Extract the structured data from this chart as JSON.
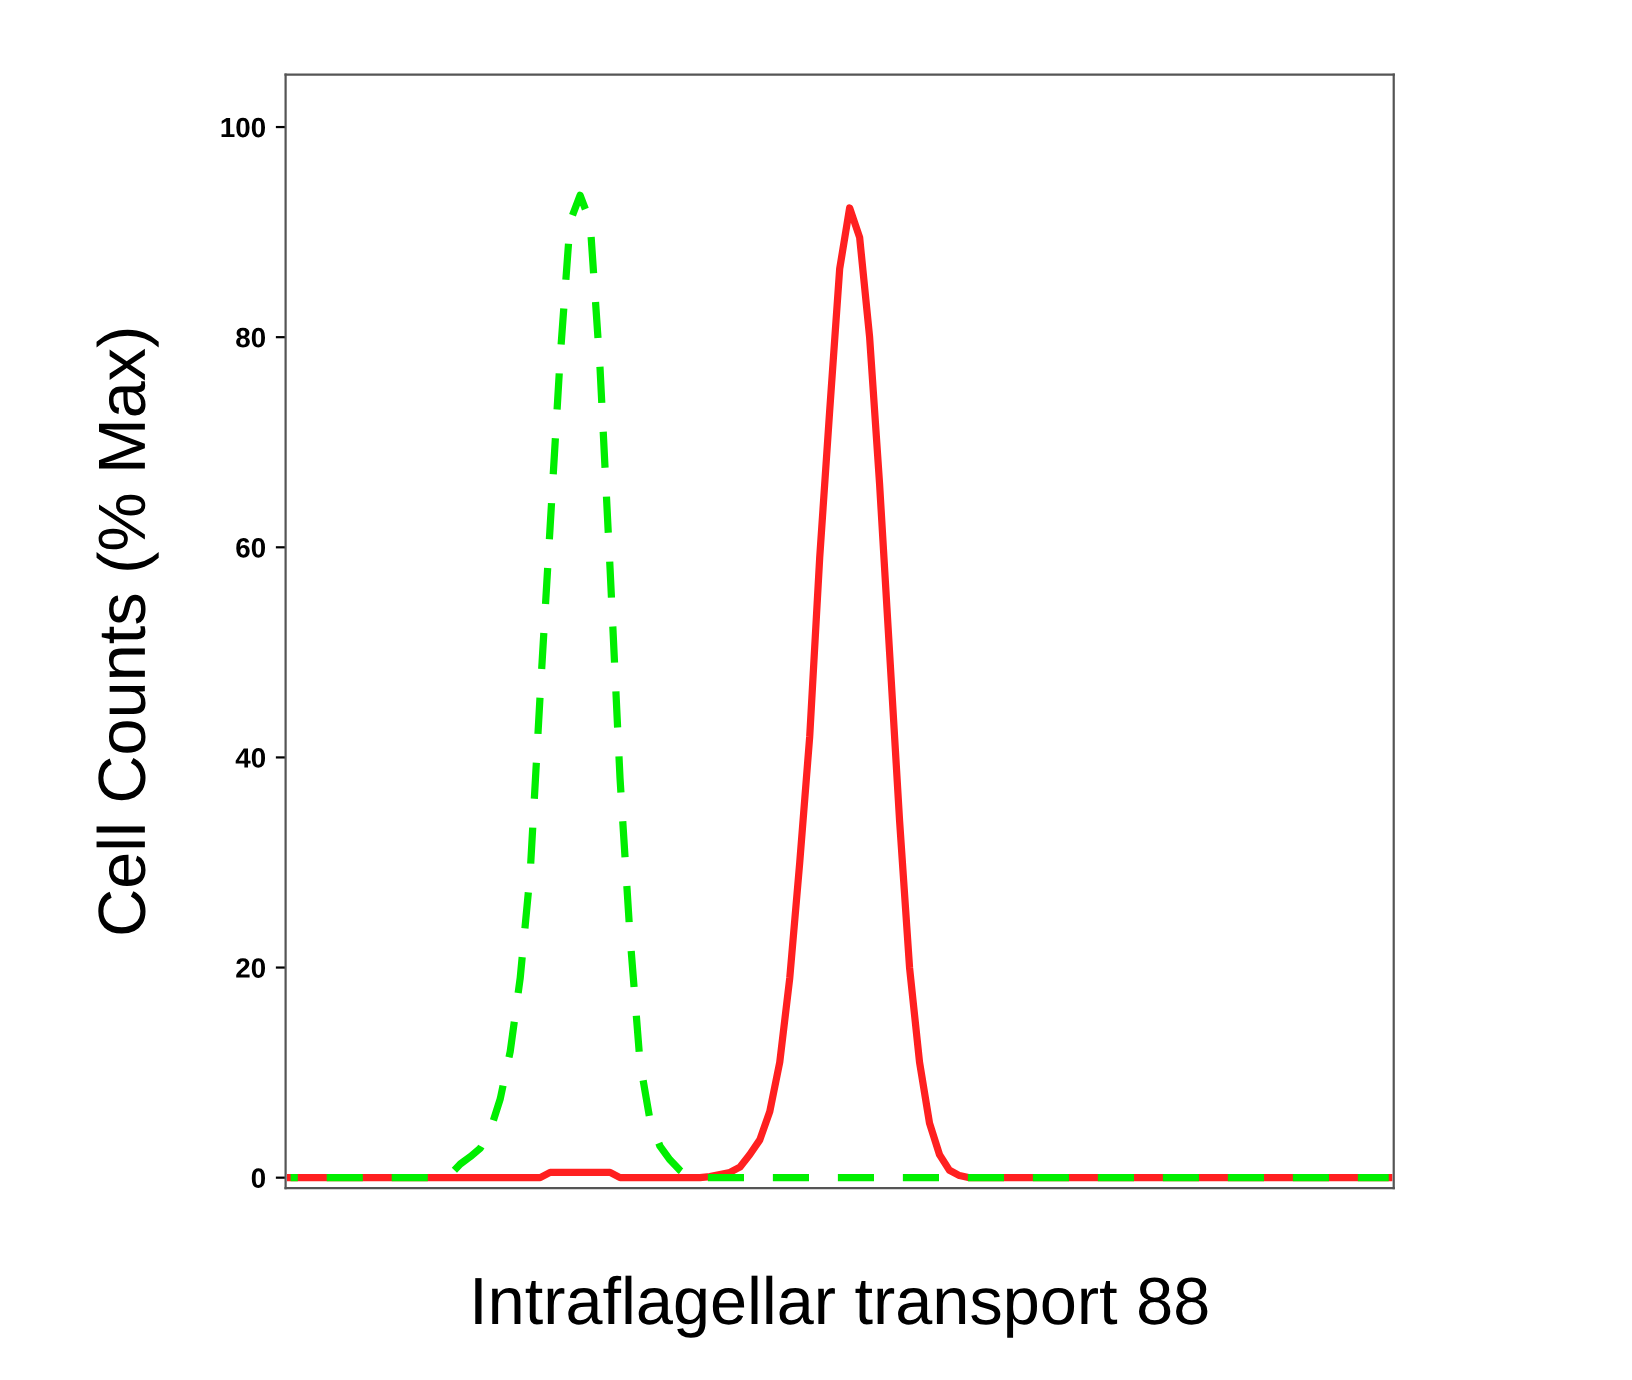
{
  "chart_data": {
    "type": "line",
    "xlabel": "Intraflagellar transport 88",
    "ylabel": "Cell Counts (% Max)",
    "ylim": [
      -1,
      105
    ],
    "yticks": [
      0,
      20,
      40,
      60,
      80,
      100
    ],
    "grid": false,
    "legend": false,
    "marker": "none",
    "categories": [
      null,
      null,
      null,
      null,
      null,
      null,
      null,
      null,
      null,
      null,
      null,
      null,
      null,
      null,
      null,
      null,
      null,
      null,
      null,
      null,
      null,
      null,
      null,
      null,
      null,
      null,
      null,
      null,
      null,
      null,
      null,
      null,
      null,
      null,
      null,
      null,
      null,
      null,
      null,
      null,
      null,
      null,
      null,
      null,
      null,
      null,
      null,
      null,
      null,
      null,
      null,
      null,
      null,
      null,
      null,
      null,
      null,
      null,
      null,
      null,
      null,
      null,
      null,
      null,
      null,
      null,
      null,
      null,
      null,
      null,
      null,
      null,
      null,
      null,
      null,
      null,
      null,
      null,
      null,
      null,
      null,
      null,
      null,
      null,
      null,
      null,
      null,
      null,
      null,
      null,
      null,
      null,
      null,
      null,
      null,
      null,
      null,
      null,
      null,
      null,
      null,
      null,
      null,
      null,
      null,
      null,
      null,
      null,
      null,
      null,
      null
    ],
    "series": [
      {
        "color": "#00ee00",
        "line_style": "dashed",
        "values": [
          0,
          0,
          0,
          0,
          0,
          0,
          0,
          0,
          0,
          0,
          0,
          0,
          0,
          0,
          0,
          0,
          0.3,
          1.3,
          2,
          2.8,
          4.5,
          7.5,
          12,
          19,
          29,
          46,
          62,
          78,
          91,
          93.5,
          91,
          77,
          58,
          38,
          23,
          11,
          5.5,
          3,
          1.7,
          0.7,
          0,
          0,
          0,
          0,
          0,
          0,
          0,
          0,
          0,
          0,
          0,
          0,
          0,
          0,
          0,
          0,
          0,
          0,
          0,
          0,
          0,
          0,
          0,
          0,
          0,
          0,
          0,
          0,
          0,
          0,
          0,
          0,
          0,
          0,
          0,
          0,
          0,
          0,
          0,
          0,
          0,
          0,
          0,
          0,
          0,
          0,
          0,
          0,
          0,
          0,
          0,
          0,
          0,
          0,
          0,
          0,
          0,
          0,
          0,
          0,
          0,
          0,
          0,
          0,
          0,
          0,
          0,
          0,
          0,
          0,
          0
        ]
      },
      {
        "color": "#ff2020",
        "line_style": "solid",
        "values": [
          0,
          0,
          0,
          0,
          0,
          0,
          0,
          0,
          0,
          0,
          0,
          0,
          0,
          0,
          0,
          0,
          0,
          0,
          0,
          0,
          0,
          0,
          0,
          0,
          0,
          0,
          0.5,
          0.5,
          0.5,
          0.5,
          0.5,
          0.5,
          0.5,
          0,
          0,
          0,
          0,
          0,
          0,
          0,
          0,
          0,
          0.1,
          0.3,
          0.5,
          1,
          2.2,
          3.6,
          6.3,
          11,
          19,
          30,
          42,
          59,
          73,
          86.5,
          92.3,
          89.5,
          80,
          66,
          50,
          34,
          20,
          11,
          5.2,
          2.2,
          0.7,
          0.2,
          0,
          0,
          0,
          0,
          0,
          0,
          0,
          0,
          0,
          0,
          0,
          0,
          0,
          0,
          0,
          0,
          0,
          0,
          0,
          0,
          0,
          0,
          0,
          0,
          0,
          0,
          0,
          0,
          0,
          0,
          0,
          0,
          0,
          0,
          0,
          0,
          0,
          0,
          0,
          0,
          0,
          0,
          0
        ]
      }
    ]
  }
}
